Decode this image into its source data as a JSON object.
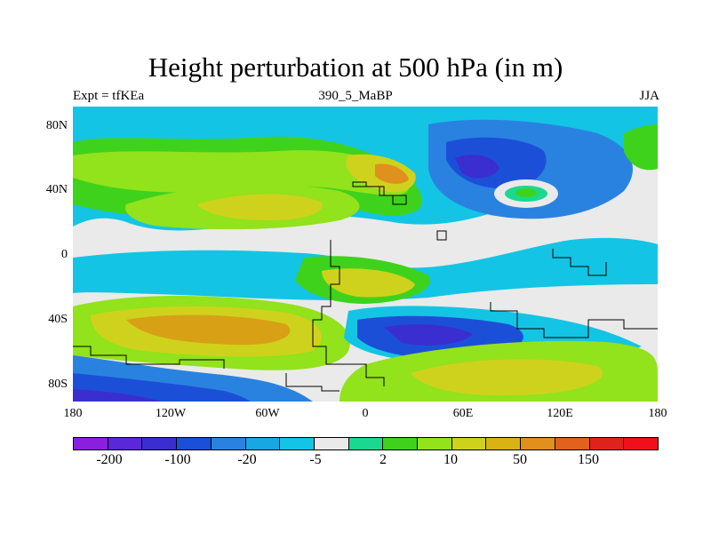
{
  "title": "Height perturbation at 500 hPa (in m)",
  "left_string": "Expt = tfKEa",
  "center_string": "390_5_MaBP",
  "right_string": "JJA",
  "y_ticks": [
    "80N",
    "40N",
    "0",
    "40S",
    "80S"
  ],
  "x_ticks": [
    "180",
    "120W",
    "60W",
    "0",
    "60E",
    "120E",
    "180"
  ],
  "colorbar": {
    "colors": [
      "#8a1fe0",
      "#5a28d8",
      "#3a2ed0",
      "#1c4fd8",
      "#2a82e0",
      "#17a8e4",
      "#14c4e4",
      "#eaeaea",
      "#1bd890",
      "#3ed21c",
      "#92e21c",
      "#cfd21c",
      "#d8b314",
      "#e0901c",
      "#e0621c",
      "#e0221c",
      "#f0101c"
    ],
    "labels": [
      "-200",
      "-100",
      "-20",
      "-5",
      "2",
      "10",
      "50",
      "150"
    ]
  },
  "map_colors": {
    "neutral": "#eaeaea",
    "light_blue": "#14c4e4",
    "mid_blue": "#2a82e0",
    "blue": "#1c4fd8",
    "dark_blue": "#3a2ed0",
    "green_cyan": "#1bd890",
    "green": "#3ed21c",
    "yellow_green": "#92e21c",
    "yellow": "#cfd21c",
    "orange": "#e0901c",
    "dark_orange": "#d8a014"
  }
}
